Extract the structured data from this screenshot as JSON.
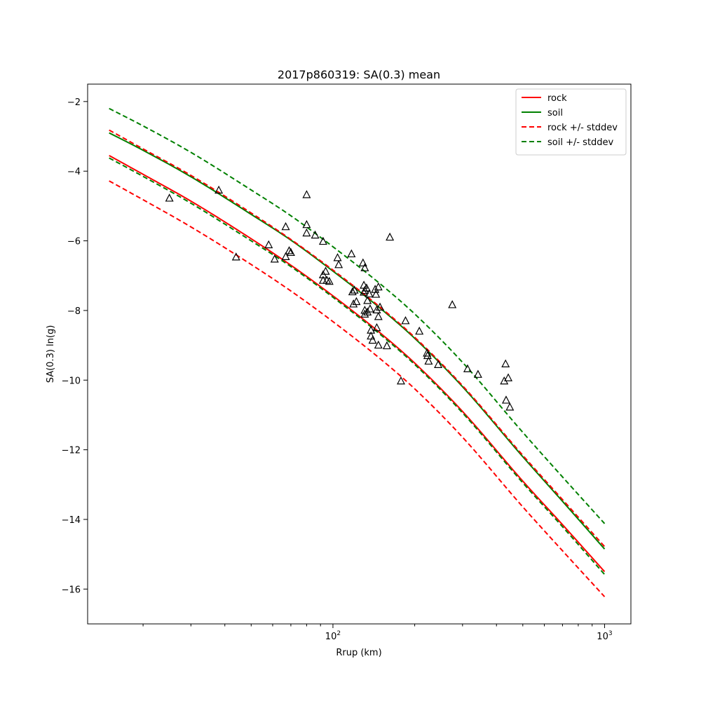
{
  "chart_data": {
    "type": "line",
    "title": "2017p860319: SA(0.3) mean",
    "xlabel": "Rrup (km)",
    "ylabel": "SA(0.3) ln(g)",
    "xscale": "log",
    "xlim": [
      12.5,
      1250
    ],
    "ylim": [
      -17.0,
      -1.5
    ],
    "grid": false,
    "legend_position": "top-right",
    "x_ticks": [
      {
        "value": 100,
        "base": "10",
        "exp": "2"
      },
      {
        "value": 1000,
        "base": "10",
        "exp": "3"
      }
    ],
    "y_ticks": [
      {
        "value": -2,
        "label": "−2"
      },
      {
        "value": -4,
        "label": "−4"
      },
      {
        "value": -6,
        "label": "−6"
      },
      {
        "value": -8,
        "label": "−8"
      },
      {
        "value": -10,
        "label": "−10"
      },
      {
        "value": -12,
        "label": "−12"
      },
      {
        "value": -14,
        "label": "−14"
      },
      {
        "value": -16,
        "label": "−16"
      }
    ],
    "series": [
      {
        "name": "rock",
        "color": "#ff0000",
        "style": "solid",
        "x": [
          15,
          20,
          30,
          50,
          70,
          100,
          150,
          200,
          300,
          500,
          700,
          1000
        ],
        "y": [
          -3.55,
          -4.09,
          -4.86,
          -5.94,
          -6.7,
          -7.58,
          -8.66,
          -9.51,
          -10.9,
          -12.9,
          -14.15,
          -15.5
        ]
      },
      {
        "name": "soil",
        "color": "#008000",
        "style": "solid",
        "x": [
          15,
          20,
          30,
          50,
          70,
          100,
          150,
          200,
          300,
          500,
          700,
          1000
        ],
        "y": [
          -2.9,
          -3.4,
          -4.16,
          -5.24,
          -5.98,
          -6.87,
          -7.95,
          -8.8,
          -10.19,
          -12.2,
          -13.48,
          -14.85
        ]
      },
      {
        "name": "rock +/- stddev",
        "color": "#ff0000",
        "style": "dashed",
        "x": [
          15,
          20,
          30,
          50,
          70,
          100,
          150,
          200,
          300,
          500,
          700,
          1000
        ],
        "y": [
          -2.82,
          -3.36,
          -4.12,
          -5.2,
          -5.96,
          -6.84,
          -7.92,
          -8.77,
          -10.16,
          -12.16,
          -13.43,
          -14.78
        ]
      },
      {
        "name": "",
        "color": "#ff0000",
        "style": "dashed",
        "x": [
          15,
          20,
          30,
          50,
          70,
          100,
          150,
          200,
          300,
          500,
          700,
          1000
        ],
        "y": [
          -4.28,
          -4.82,
          -5.6,
          -6.68,
          -7.44,
          -8.32,
          -9.4,
          -10.25,
          -11.64,
          -13.64,
          -14.9,
          -16.22
        ]
      },
      {
        "name": "soil +/- stddev",
        "color": "#008000",
        "style": "dashed",
        "x": [
          15,
          20,
          30,
          50,
          70,
          100,
          150,
          200,
          300,
          500,
          700,
          1000
        ],
        "y": [
          -2.2,
          -2.7,
          -3.46,
          -4.54,
          -5.28,
          -6.17,
          -7.25,
          -8.1,
          -9.49,
          -11.5,
          -12.78,
          -14.12
        ]
      },
      {
        "name": "",
        "color": "#008000",
        "style": "dashed",
        "x": [
          15,
          20,
          30,
          50,
          70,
          100,
          150,
          200,
          300,
          500,
          700,
          1000
        ],
        "y": [
          -3.62,
          -4.15,
          -4.92,
          -6.0,
          -6.74,
          -7.62,
          -8.7,
          -9.55,
          -10.94,
          -12.95,
          -14.21,
          -15.58
        ]
      }
    ],
    "observations": {
      "marker": "triangle",
      "color": "#000000",
      "points": [
        [
          25,
          -4.78
        ],
        [
          38,
          -4.55
        ],
        [
          44,
          -6.47
        ],
        [
          58,
          -6.12
        ],
        [
          61,
          -6.53
        ],
        [
          67,
          -5.6
        ],
        [
          67,
          -6.46
        ],
        [
          69,
          -6.29
        ],
        [
          70,
          -6.34
        ],
        [
          80,
          -4.68
        ],
        [
          80,
          -5.54
        ],
        [
          80,
          -5.78
        ],
        [
          86,
          -5.84
        ],
        [
          92,
          -6.02
        ],
        [
          92,
          -6.98
        ],
        [
          92,
          -7.14
        ],
        [
          94,
          -6.88
        ],
        [
          95,
          -7.14
        ],
        [
          97,
          -7.17
        ],
        [
          104,
          -6.49
        ],
        [
          105,
          -6.69
        ],
        [
          117,
          -6.38
        ],
        [
          118,
          -7.47
        ],
        [
          119,
          -7.82
        ],
        [
          120,
          -7.42
        ],
        [
          122,
          -7.75
        ],
        [
          129,
          -6.64
        ],
        [
          130,
          -7.28
        ],
        [
          130,
          -7.48
        ],
        [
          131,
          -6.78
        ],
        [
          131,
          -7.43
        ],
        [
          131,
          -8.0
        ],
        [
          131,
          -8.11
        ],
        [
          133,
          -7.36
        ],
        [
          134,
          -8.05
        ],
        [
          134,
          -7.72
        ],
        [
          136,
          -7.53
        ],
        [
          137,
          -7.96
        ],
        [
          138,
          -8.57
        ],
        [
          138,
          -8.74
        ],
        [
          140,
          -8.86
        ],
        [
          143,
          -7.4
        ],
        [
          144,
          -7.54
        ],
        [
          145,
          -7.99
        ],
        [
          145,
          -8.5
        ],
        [
          147,
          -7.33
        ],
        [
          147,
          -8.18
        ],
        [
          147,
          -9.0
        ],
        [
          149,
          -7.91
        ],
        [
          158,
          -9.02
        ],
        [
          162,
          -5.9
        ],
        [
          178,
          -10.03
        ],
        [
          185,
          -8.3
        ],
        [
          208,
          -8.6
        ],
        [
          222,
          -9.23
        ],
        [
          223,
          -9.3
        ],
        [
          225,
          -9.46
        ],
        [
          244,
          -9.56
        ],
        [
          275,
          -7.84
        ],
        [
          313,
          -9.68
        ],
        [
          342,
          -9.84
        ],
        [
          427,
          -10.03
        ],
        [
          432,
          -9.54
        ],
        [
          434,
          -10.58
        ],
        [
          442,
          -9.94
        ],
        [
          448,
          -10.78
        ]
      ]
    }
  }
}
